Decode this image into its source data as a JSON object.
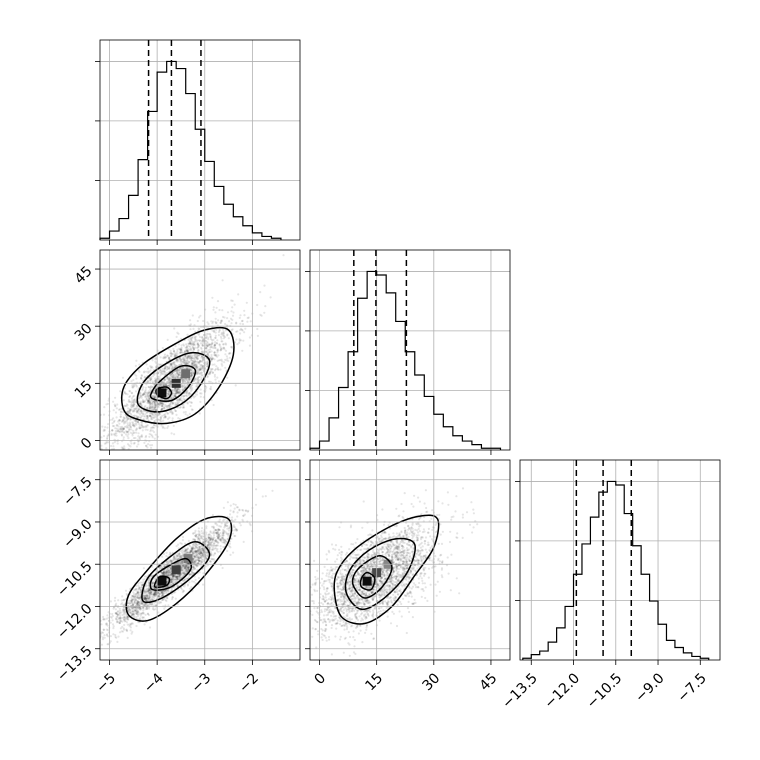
{
  "chart_data": {
    "type": "corner",
    "parameters": [
      {
        "ticks": [
          -5,
          -4,
          -3,
          -2
        ],
        "tick_labels": [
          "−5",
          "−4",
          "−3",
          "−2"
        ],
        "range": [
          -5.2,
          -1.0
        ]
      },
      {
        "ticks": [
          0,
          15,
          30,
          45
        ],
        "tick_labels": [
          "0",
          "15",
          "30",
          "45"
        ],
        "range": [
          -2.5,
          50.0
        ]
      },
      {
        "ticks": [
          -13.5,
          -12.0,
          -10.5,
          -9.0,
          -7.5
        ],
        "tick_labels": [
          "−13.5",
          "−12.0",
          "−10.5",
          "−9.0",
          "−7.5"
        ],
        "range": [
          -13.9,
          -6.8
        ]
      }
    ],
    "histograms": [
      {
        "param": 0,
        "bin_edges": [
          -5.2,
          -5.0,
          -4.8,
          -4.6,
          -4.4,
          -4.2,
          -4.0,
          -3.8,
          -3.6,
          -3.4,
          -3.2,
          -3.0,
          -2.8,
          -2.6,
          -2.4,
          -2.2,
          -2.0,
          -1.8,
          -1.6,
          -1.4
        ],
        "counts": [
          0.01,
          0.05,
          0.12,
          0.25,
          0.45,
          0.72,
          0.94,
          1.0,
          0.96,
          0.82,
          0.62,
          0.44,
          0.3,
          0.2,
          0.13,
          0.08,
          0.04,
          0.02,
          0.01
        ],
        "quantiles": [
          -4.18,
          -3.7,
          -3.08
        ]
      },
      {
        "param": 1,
        "bin_edges": [
          -2.5,
          0.0,
          2.5,
          5.0,
          7.5,
          10.0,
          12.5,
          15.0,
          17.5,
          20.0,
          22.5,
          25.0,
          27.5,
          30.0,
          32.5,
          35.0,
          37.5,
          40.0,
          42.5,
          45.0,
          47.5
        ],
        "counts": [
          0.01,
          0.05,
          0.18,
          0.35,
          0.55,
          0.85,
          1.0,
          0.98,
          0.88,
          0.72,
          0.55,
          0.42,
          0.3,
          0.2,
          0.13,
          0.08,
          0.05,
          0.03,
          0.01,
          0.01
        ],
        "quantiles": [
          9.0,
          14.8,
          22.8
        ]
      },
      {
        "param": 2,
        "bin_edges": [
          -13.8,
          -13.5,
          -13.2,
          -12.9,
          -12.6,
          -12.3,
          -12.0,
          -11.7,
          -11.4,
          -11.1,
          -10.8,
          -10.5,
          -10.2,
          -9.9,
          -9.6,
          -9.3,
          -9.0,
          -8.7,
          -8.4,
          -8.1,
          -7.8,
          -7.5,
          -7.2
        ],
        "counts": [
          0.01,
          0.03,
          0.05,
          0.1,
          0.18,
          0.3,
          0.48,
          0.65,
          0.8,
          0.94,
          1.0,
          0.98,
          0.82,
          0.64,
          0.48,
          0.33,
          0.2,
          0.11,
          0.07,
          0.04,
          0.02,
          0.01
        ],
        "quantiles": [
          -11.9,
          -10.95,
          -9.95
        ]
      }
    ],
    "density_panels": [
      {
        "x_param": 0,
        "y_param": 1,
        "cloud_center": [
          -3.7,
          15.0
        ],
        "cloud_spread": [
          0.65,
          8.0
        ],
        "correlation": 0.8,
        "density_peaks": [
          {
            "x": -3.9,
            "y": 12.5,
            "w": 1.0
          },
          {
            "x": -3.6,
            "y": 15.0,
            "w": 0.85
          },
          {
            "x": -3.4,
            "y": 17.5,
            "w": 0.6
          }
        ],
        "contours": [
          [
            [
              -4.7,
              8.0
            ],
            [
              -4.4,
              5.5
            ],
            [
              -3.8,
              4.5
            ],
            [
              -3.2,
              7.0
            ],
            [
              -2.7,
              14.0
            ],
            [
              -2.4,
              22.5
            ],
            [
              -2.5,
              29.0
            ],
            [
              -3.0,
              29.0
            ],
            [
              -3.6,
              25.5
            ],
            [
              -4.3,
              20.0
            ],
            [
              -4.7,
              14.0
            ]
          ],
          [
            [
              -4.4,
              9.5
            ],
            [
              -4.0,
              7.5
            ],
            [
              -3.5,
              9.5
            ],
            [
              -3.1,
              14.5
            ],
            [
              -2.9,
              21.0
            ],
            [
              -3.3,
              23.0
            ],
            [
              -3.9,
              19.5
            ],
            [
              -4.3,
              15.0
            ]
          ],
          [
            [
              -4.1,
              11.0
            ],
            [
              -3.7,
              10.5
            ],
            [
              -3.35,
              14.0
            ],
            [
              -3.2,
              18.5
            ],
            [
              -3.5,
              19.5
            ],
            [
              -3.9,
              16.0
            ],
            [
              -4.1,
              13.0
            ]
          ],
          [
            [
              -4.0,
              12.0
            ],
            [
              -3.8,
              11.0
            ],
            [
              -3.7,
              12.5
            ],
            [
              -3.8,
              14.0
            ],
            [
              -4.0,
              13.5
            ]
          ]
        ]
      },
      {
        "x_param": 0,
        "y_param": 2,
        "cloud_center": [
          -3.7,
          -10.9
        ],
        "cloud_spread": [
          0.65,
          0.95
        ],
        "correlation": 0.93,
        "density_peaks": [
          {
            "x": -3.9,
            "y": -11.1,
            "w": 1.0
          },
          {
            "x": -3.6,
            "y": -10.7,
            "w": 0.8
          },
          {
            "x": -3.35,
            "y": -10.3,
            "w": 0.55
          }
        ],
        "contours": [
          [
            [
              -4.6,
              -12.3
            ],
            [
              -4.2,
              -12.5
            ],
            [
              -3.6,
              -11.9
            ],
            [
              -3.0,
              -10.9
            ],
            [
              -2.5,
              -9.7
            ],
            [
              -2.5,
              -8.9
            ],
            [
              -3.0,
              -8.9
            ],
            [
              -3.6,
              -9.6
            ],
            [
              -4.2,
              -10.7
            ],
            [
              -4.6,
              -11.6
            ]
          ],
          [
            [
              -4.3,
              -11.8
            ],
            [
              -3.9,
              -11.7
            ],
            [
              -3.3,
              -11.0
            ],
            [
              -2.9,
              -10.2
            ],
            [
              -3.2,
              -9.7
            ],
            [
              -3.7,
              -10.2
            ],
            [
              -4.2,
              -11.0
            ]
          ],
          [
            [
              -4.1,
              -11.4
            ],
            [
              -3.7,
              -11.3
            ],
            [
              -3.3,
              -10.7
            ],
            [
              -3.4,
              -10.3
            ],
            [
              -3.8,
              -10.6
            ],
            [
              -4.1,
              -11.0
            ]
          ],
          [
            [
              -4.05,
              -11.3
            ],
            [
              -3.8,
              -11.25
            ],
            [
              -3.75,
              -11.0
            ],
            [
              -3.95,
              -10.95
            ]
          ]
        ]
      },
      {
        "x_param": 1,
        "y_param": 2,
        "cloud_center": [
          15.0,
          -10.9
        ],
        "cloud_spread": [
          8.0,
          0.95
        ],
        "correlation": 0.6,
        "density_peaks": [
          {
            "x": 12.5,
            "y": -11.1,
            "w": 1.0
          },
          {
            "x": 15.0,
            "y": -10.8,
            "w": 0.75
          },
          {
            "x": 18.0,
            "y": -10.5,
            "w": 0.5
          }
        ],
        "contours": [
          [
            [
              4.0,
              -11.6
            ],
            [
              6.0,
              -12.4
            ],
            [
              12.0,
              -12.6
            ],
            [
              19.0,
              -12.0
            ],
            [
              25.0,
              -10.9
            ],
            [
              30.0,
              -9.9
            ],
            [
              31.0,
              -8.9
            ],
            [
              26.0,
              -8.8
            ],
            [
              18.0,
              -9.2
            ],
            [
              9.0,
              -10.0
            ],
            [
              4.5,
              -10.8
            ]
          ],
          [
            [
              7.0,
              -11.5
            ],
            [
              11.0,
              -12.1
            ],
            [
              17.0,
              -11.7
            ],
            [
              23.0,
              -10.8
            ],
            [
              25.0,
              -9.8
            ],
            [
              20.0,
              -9.6
            ],
            [
              13.0,
              -10.0
            ],
            [
              8.0,
              -10.7
            ]
          ],
          [
            [
              9.0,
              -11.3
            ],
            [
              12.0,
              -11.7
            ],
            [
              16.5,
              -11.3
            ],
            [
              19.0,
              -10.6
            ],
            [
              16.0,
              -10.2
            ],
            [
              11.5,
              -10.5
            ],
            [
              9.0,
              -10.9
            ]
          ],
          [
            [
              11.0,
              -11.3
            ],
            [
              13.5,
              -11.4
            ],
            [
              14.5,
              -11.0
            ],
            [
              12.5,
              -10.8
            ],
            [
              11.0,
              -11.0
            ]
          ]
        ]
      }
    ],
    "grid": true,
    "legend": "none"
  }
}
